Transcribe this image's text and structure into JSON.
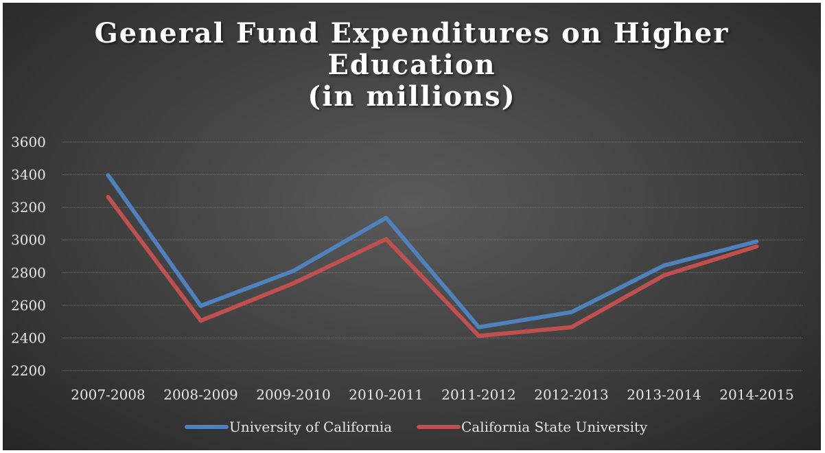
{
  "chart_data": {
    "type": "line",
    "title": [
      "General Fund Expenditures on Higher",
      "Education",
      "(in millions)"
    ],
    "categories": [
      "2007-2008",
      "2008-2009",
      "2009-2010",
      "2010-2011",
      "2011-2012",
      "2012-2013",
      "2013-2014",
      "2014-2015"
    ],
    "series": [
      {
        "name": "University of California",
        "color": "#4f81bd",
        "values": [
          3397,
          2597,
          2811,
          3136,
          2466,
          2558,
          2844,
          2991
        ]
      },
      {
        "name": "California State University",
        "color": "#c0504d",
        "values": [
          3264,
          2506,
          2735,
          3006,
          2413,
          2466,
          2784,
          2961
        ]
      }
    ],
    "yticks": [
      2200,
      2400,
      2600,
      2800,
      3000,
      3200,
      3400,
      3600
    ],
    "ylim": [
      2200,
      3600
    ],
    "grid": true,
    "legend": "bottom"
  }
}
